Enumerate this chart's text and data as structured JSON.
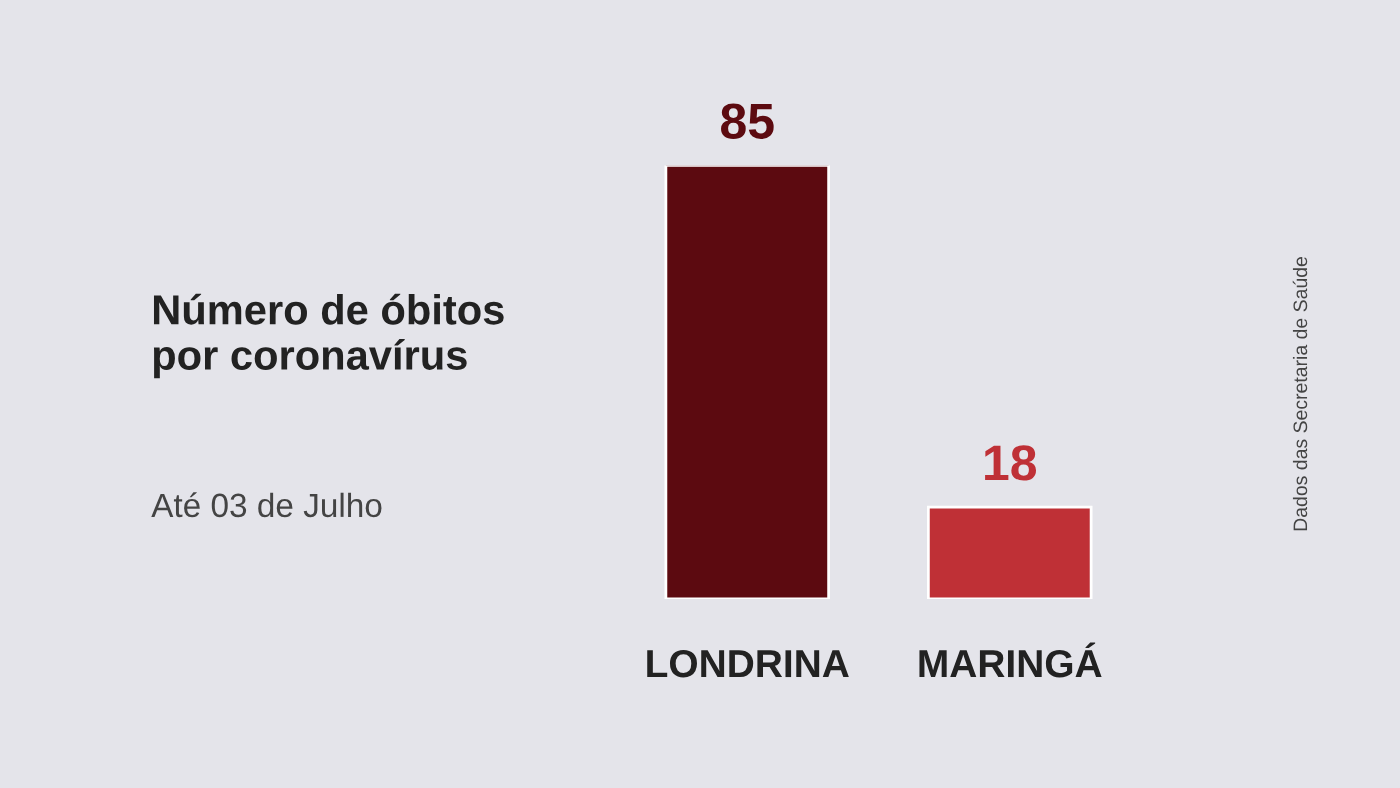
{
  "chart_data": {
    "type": "bar",
    "title": "Número de óbitos\npor coronavírus",
    "subtitle": "Até 03 de Julho",
    "categories": [
      "LONDRINA",
      "MARINGÁ"
    ],
    "values": [
      85,
      18
    ],
    "colors": [
      "#5c0a10",
      "#bf3036"
    ],
    "data_labels": true,
    "annotations": [
      "Dados das Secretaria de Saúde"
    ]
  }
}
